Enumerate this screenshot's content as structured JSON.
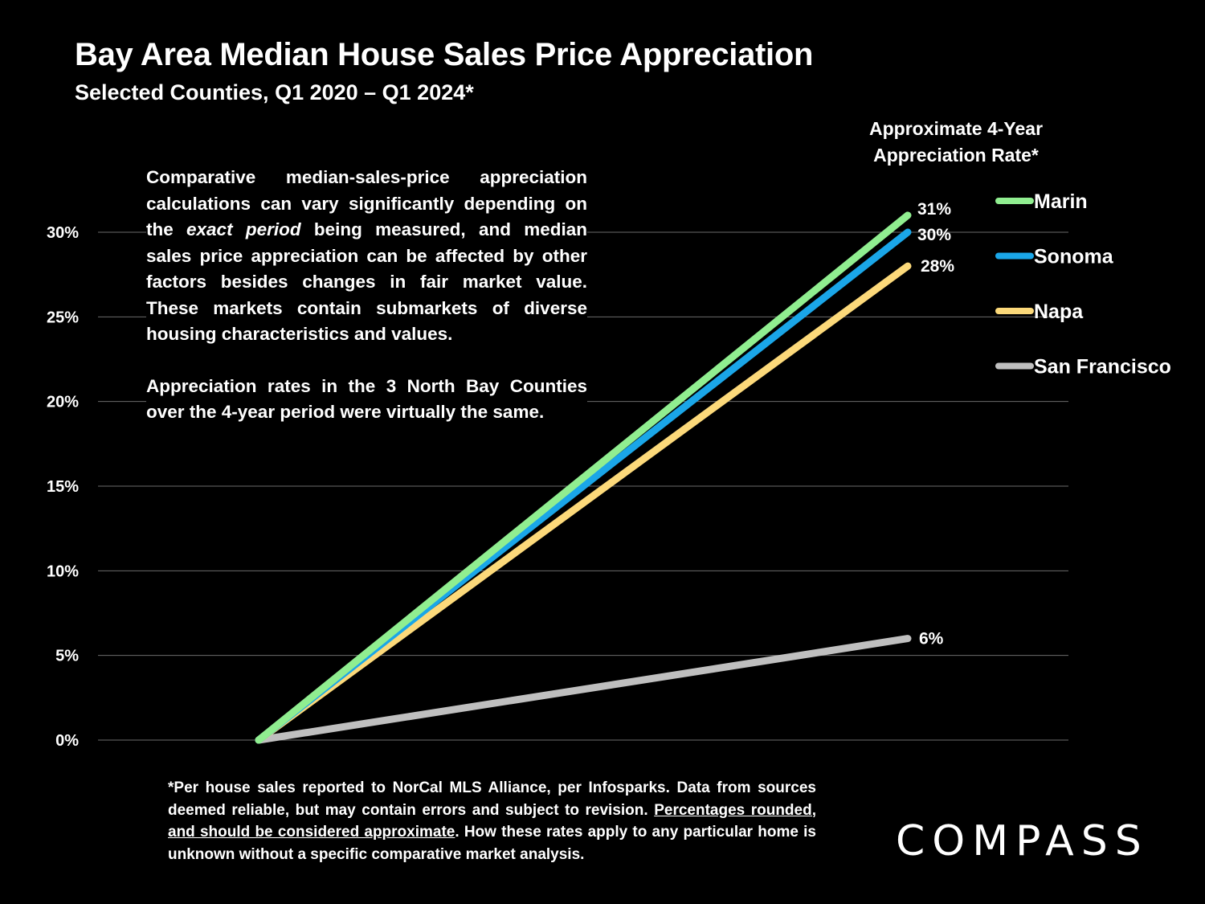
{
  "title": "Bay Area Median House Sales Price Appreciation",
  "subtitle": "Selected Counties, Q1 2020 – Q1 2024*",
  "annotation": {
    "p1_before": "Comparative median-sales-price appreciation calculations can vary significantly depending on the ",
    "p1_emph": "exact period",
    "p1_after": " being measured, and median sales price appreciation can be affected by other factors besides changes in fair market value. These markets contain submarkets of diverse housing characteristics and values.",
    "p2": "Appreciation rates in the 3 North Bay Counties over the 4-year period were virtually the same."
  },
  "footnote": {
    "before": "*Per house sales reported to NorCal MLS Alliance, per Infosparks. Data from sources deemed reliable, but may contain errors and subject to revision. ",
    "underlined": "Percentages rounded, and should be considered approximate",
    "after": ". How these rates apply to any particular home is unknown without a specific comparative market analysis."
  },
  "logo_text": "COMPASS",
  "chart_data": {
    "type": "line",
    "title": "Bay Area Median House Sales Price Appreciation",
    "subtitle": "Selected Counties, Q1 2020 – Q1 2024*",
    "x": [
      "Q1 2020",
      "Q1 2024"
    ],
    "xlabel": "",
    "ylabel": "",
    "ylim": [
      0,
      30
    ],
    "y_ticks": [
      0,
      5,
      10,
      15,
      20,
      25,
      30
    ],
    "y_tick_labels": [
      "0%",
      "5%",
      "10%",
      "15%",
      "20%",
      "25%",
      "30%"
    ],
    "grid": true,
    "legend_title_lines": [
      "Approximate 4-Year",
      "Appreciation Rate*"
    ],
    "legend_position": "right",
    "series": [
      {
        "name": "Marin",
        "values": [
          0,
          31
        ],
        "color": "#90EE90",
        "end_label": "31%"
      },
      {
        "name": "Sonoma",
        "values": [
          0,
          30
        ],
        "color": "#1AA6E8",
        "end_label": "30%"
      },
      {
        "name": "Napa",
        "values": [
          0,
          28
        ],
        "color": "#FCD97A",
        "end_label": "28%"
      },
      {
        "name": "San Francisco",
        "values": [
          0,
          6
        ],
        "color": "#BFBFBF",
        "end_label": "6%"
      }
    ]
  }
}
